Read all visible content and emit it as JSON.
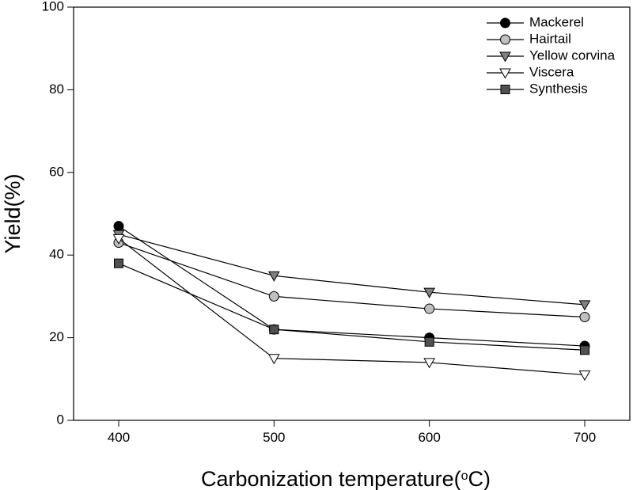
{
  "chart_data": {
    "type": "line",
    "title": "",
    "xlabel": "Carbonization temperature",
    "xlabel_unit_sup": "o",
    "xlabel_unit": "C",
    "ylabel": "Yield(%)",
    "x": [
      400,
      500,
      600,
      700
    ],
    "xticks": [
      "400",
      "500",
      "600",
      "700"
    ],
    "ylim": [
      0,
      100
    ],
    "yticks": [
      "0",
      "20",
      "40",
      "60",
      "80",
      "100"
    ],
    "grid": false,
    "legend_position": "top-right",
    "series": [
      {
        "name": "Mackerel",
        "values": [
          47,
          22,
          20,
          18
        ],
        "marker": "circle",
        "fill": "#000000"
      },
      {
        "name": "Hairtail",
        "values": [
          43,
          30,
          27,
          25
        ],
        "marker": "circle",
        "fill": "#c0c0c0"
      },
      {
        "name": "Yellow corvina",
        "values": [
          45,
          35,
          31,
          28
        ],
        "marker": "triangle-down",
        "fill": "#808080"
      },
      {
        "name": "Viscera",
        "values": [
          44,
          15,
          14,
          11
        ],
        "marker": "triangle-down",
        "fill": "#ffffff"
      },
      {
        "name": "Synthesis",
        "values": [
          38,
          22,
          19,
          17
        ],
        "marker": "square",
        "fill": "#505050"
      }
    ]
  }
}
